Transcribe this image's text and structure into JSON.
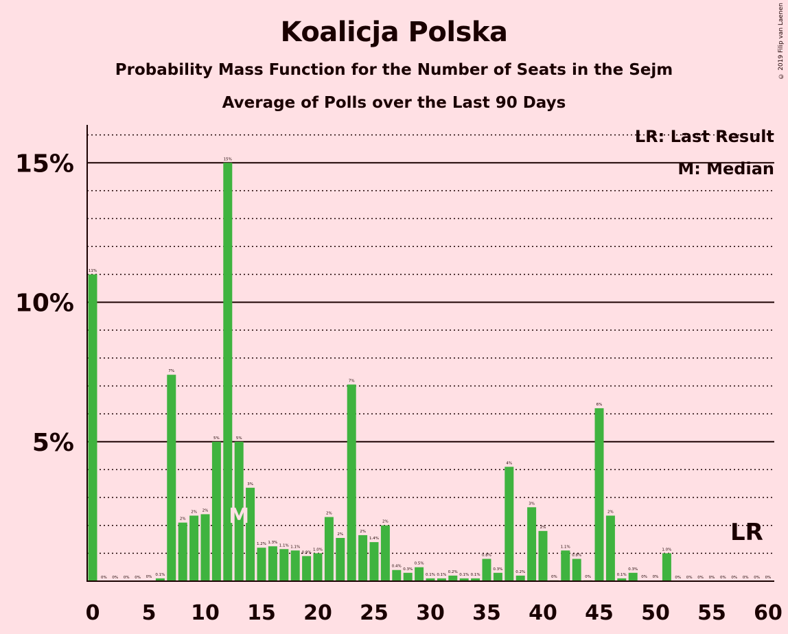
{
  "title": "Koalicja Polska",
  "subtitle": "Probability Mass Function for the Number of Seats in the Sejm",
  "subtitle2": "Average of Polls over the Last 90 Days",
  "copyright": "© 2019 Filip van Laenen",
  "legend": {
    "lr": "LR: Last Result",
    "m": "M: Median"
  },
  "markers": {
    "median_label": "M",
    "median_seat": 13,
    "last_result_label": "LR",
    "last_result_seat": 58
  },
  "colors": {
    "background": "#FFE0E4",
    "bar": "#3FB33F",
    "axis": "#1a0000"
  },
  "chart_data": {
    "type": "bar",
    "title": "Koalicja Polska",
    "xlabel": "",
    "ylabel": "",
    "xlim": [
      0,
      60
    ],
    "ylim": [
      0,
      16.5
    ],
    "x_ticks": [
      0,
      5,
      10,
      15,
      20,
      25,
      30,
      35,
      40,
      45,
      50,
      55,
      60
    ],
    "y_ticks": [
      5,
      10,
      15
    ],
    "y_tick_labels": [
      "5%",
      "10%",
      "15%"
    ],
    "grid": "major solid at 5% steps, dotted minor at 1% steps",
    "x": [
      0,
      1,
      2,
      3,
      4,
      5,
      6,
      7,
      8,
      9,
      10,
      11,
      12,
      13,
      14,
      15,
      16,
      17,
      18,
      19,
      20,
      21,
      22,
      23,
      24,
      25,
      26,
      27,
      28,
      29,
      30,
      31,
      32,
      33,
      34,
      35,
      36,
      37,
      38,
      39,
      40,
      41,
      42,
      43,
      44,
      45,
      46,
      47,
      48,
      49,
      50,
      51,
      52,
      53,
      54,
      55,
      56,
      57,
      58,
      59,
      60
    ],
    "values": [
      11,
      0,
      0,
      0,
      0,
      0.02,
      0.1,
      7.4,
      2.1,
      2.35,
      2.4,
      5,
      15,
      5,
      3.35,
      1.2,
      1.25,
      1.15,
      1.1,
      0.9,
      1.0,
      2.3,
      1.55,
      7.05,
      1.65,
      1.4,
      2.0,
      0.4,
      0.3,
      0.5,
      0.1,
      0.1,
      0.2,
      0.1,
      0.1,
      0.8,
      0.3,
      4.1,
      0.2,
      2.65,
      1.8,
      0.03,
      1.1,
      0.8,
      0.03,
      6.2,
      2.35,
      0.1,
      0.3,
      0.02,
      0.02,
      1.0,
      0,
      0,
      0,
      0,
      0,
      0,
      0,
      0,
      0
    ],
    "labels": [
      "11%",
      "0%",
      "0%",
      "0%",
      "0%",
      "0%",
      "0.1%",
      "7%",
      "2%",
      "2%",
      "2%",
      "5%",
      "15%",
      "5%",
      "3%",
      "1.2%",
      "1.3%",
      "1.1%",
      "1.1%",
      "0.9%",
      "1.0%",
      "2%",
      "2%",
      "7%",
      "2%",
      "1.4%",
      "2%",
      "0.4%",
      "0.3%",
      "0.5%",
      "0.1%",
      "0.1%",
      "0.2%",
      "0.1%",
      "0.1%",
      "0.8%",
      "0.3%",
      "4%",
      "0.2%",
      "3%",
      "2%",
      "0%",
      "1.1%",
      "0.8%",
      "0%",
      "6%",
      "2%",
      "0.1%",
      "0.3%",
      "0%",
      "0%",
      "1.0%",
      "0%",
      "0%",
      "0%",
      "0%",
      "0%",
      "0%",
      "0%",
      "0%",
      "0%"
    ]
  }
}
